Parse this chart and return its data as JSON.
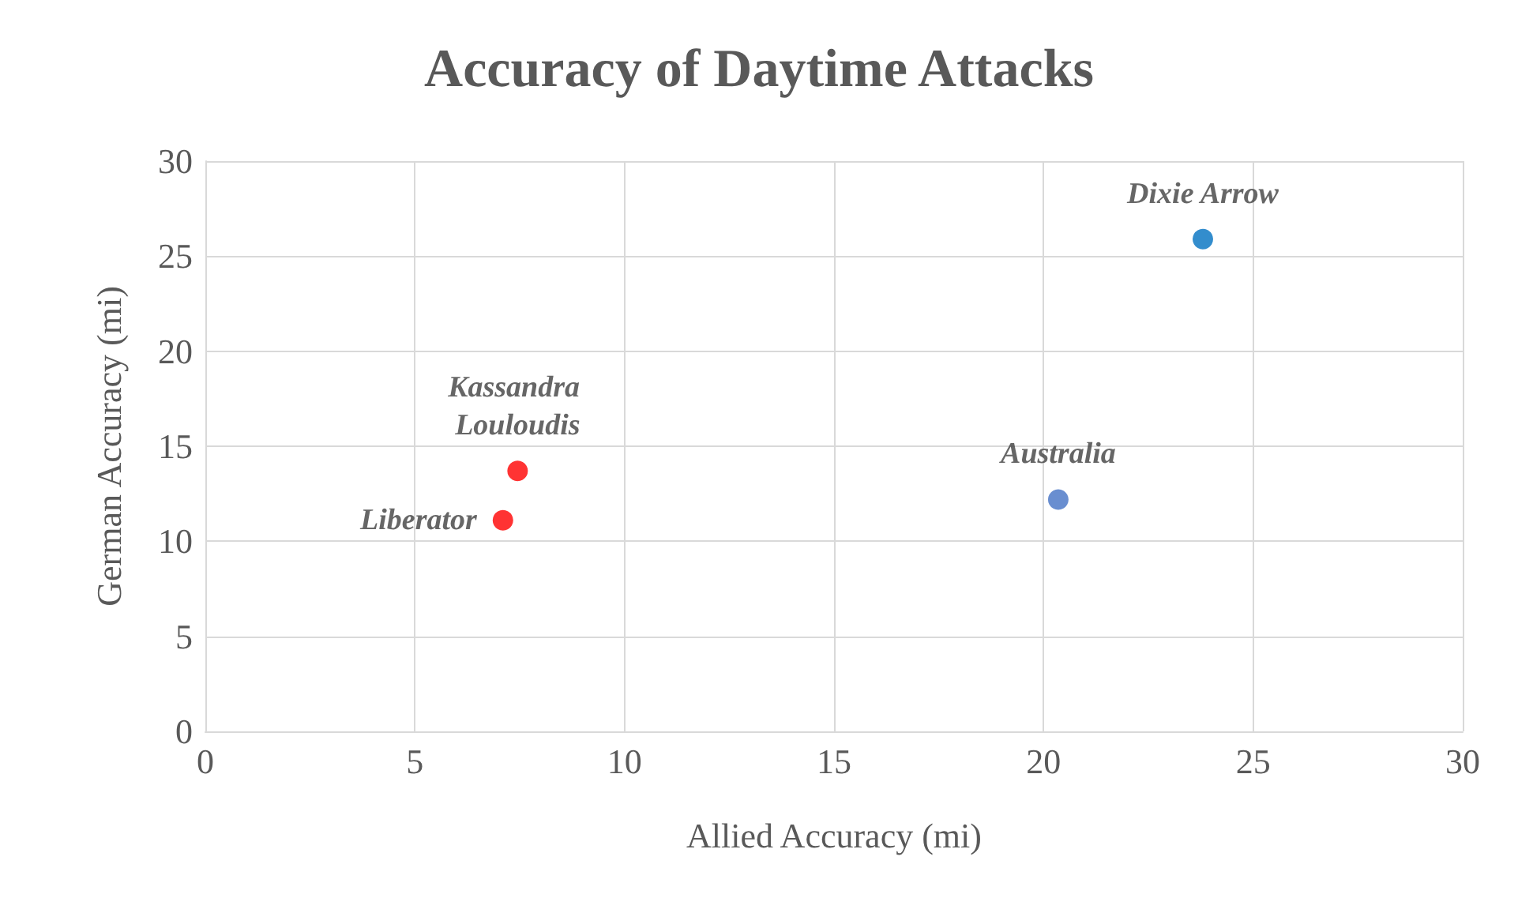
{
  "chart_data": {
    "type": "scatter",
    "title": "Accuracy of Daytime Attacks",
    "xlabel": "Allied Accuracy (mi)",
    "ylabel": "German Accuracy (mi)",
    "xlim": [
      0,
      30
    ],
    "xticks": [
      0,
      5,
      10,
      15,
      20,
      25,
      30
    ],
    "ylim": [
      0,
      30
    ],
    "yticks": [
      0,
      5,
      10,
      15,
      20,
      25,
      30
    ],
    "grid": true,
    "legend": false,
    "marker": "circle",
    "series": [
      {
        "name": "Dixie Arrow",
        "color": "#0070c0",
        "x": [
          23.8
        ],
        "values": [
          25.9
        ]
      },
      {
        "name": "Australia",
        "color": "#4472c4",
        "x": [
          20.35
        ],
        "values": [
          12.2
        ]
      },
      {
        "name": "Kassandra Louloudis",
        "color": "#ff0000",
        "x": [
          7.45
        ],
        "values": [
          13.7
        ]
      },
      {
        "name": "Liberator",
        "color": "#ff0000",
        "x": [
          7.1
        ],
        "values": [
          11.1
        ]
      }
    ]
  }
}
